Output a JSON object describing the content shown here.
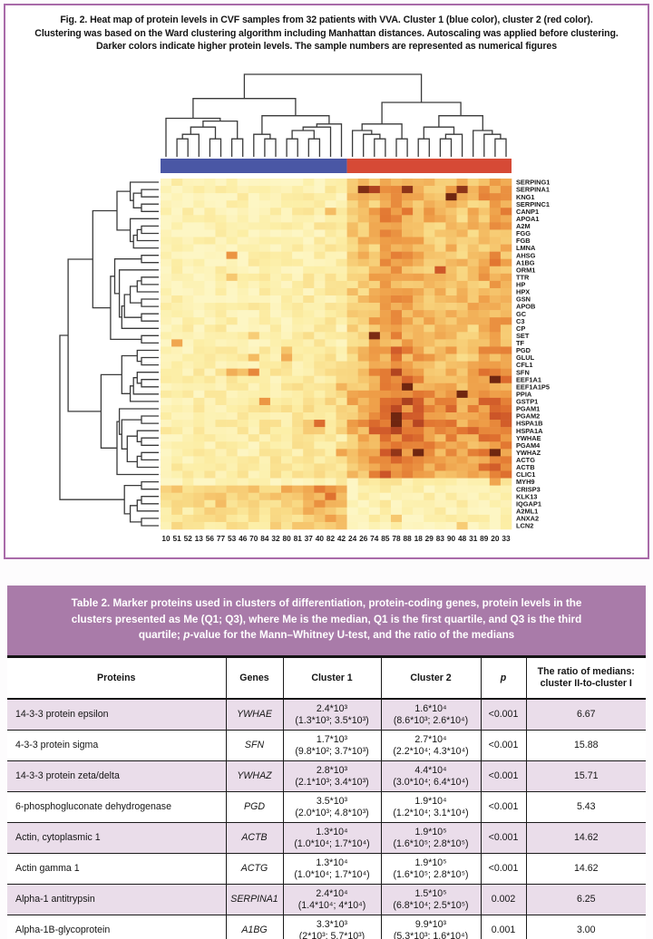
{
  "figure": {
    "caption_lines": [
      "Fig. 2. Heat map of protein levels in CVF samples from 32 patients with VVA. Cluster 1 (blue color), cluster 2 (red color).",
      "Clustering was based on the Ward clustering algorithm including Manhattan distances. Autoscaling was applied before clustering.",
      "Darker colors indicate higher protein levels. The sample numbers are represented as numerical figures"
    ],
    "border_color": "#a96ba9",
    "cluster1_color": "#4a57a5",
    "cluster2_color": "#d64a36"
  },
  "chart_data": {
    "type": "heatmap",
    "title": "Heat map of protein levels in CVF samples from 32 patients with VVA",
    "rows": [
      "SERPING1",
      "SERPINA1",
      "KNG1",
      "SERPINC1",
      "CANP1",
      "APOA1",
      "A2M",
      "FGG",
      "FGB",
      "LMNA",
      "AHSG",
      "A1BG",
      "ORM1",
      "TTR",
      "HP",
      "HPX",
      "GSN",
      "APOB",
      "GC",
      "C3",
      "CP",
      "SET",
      "TF",
      "PGD",
      "GLUL",
      "CFL1",
      "SFN",
      "EEF1A1",
      "EEF1A1P5",
      "PPIA",
      "GSTP1",
      "PGAM1",
      "PGAM2",
      "HSPA1B",
      "HSPA1A",
      "YWHAE",
      "PGAM4",
      "YWHAZ",
      "ACTG",
      "ACTB",
      "CLIC1",
      "MYH9",
      "CRISP3",
      "KLK13",
      "IQGAP1",
      "A2ML1",
      "ANXA2",
      "LCN2"
    ],
    "columns": [
      "10",
      "51",
      "52",
      "13",
      "56",
      "77",
      "53",
      "46",
      "70",
      "84",
      "32",
      "80",
      "81",
      "37",
      "40",
      "82",
      "42",
      "24",
      "26",
      "74",
      "85",
      "78",
      "88",
      "18",
      "29",
      "83",
      "90",
      "48",
      "31",
      "89",
      "20",
      "33"
    ],
    "cluster1_count": 17,
    "legend": {
      "cluster1": "blue",
      "cluster2": "red"
    },
    "palette_stops": [
      [
        0,
        "#FDF6C4"
      ],
      [
        0.18,
        "#FCEEA6"
      ],
      [
        0.35,
        "#F9DC88"
      ],
      [
        0.5,
        "#F5C168"
      ],
      [
        0.65,
        "#EE9D47"
      ],
      [
        0.78,
        "#E17430"
      ],
      [
        0.9,
        "#C84E26"
      ],
      [
        1,
        "#702610"
      ]
    ],
    "row_levels": [
      [
        0.1,
        0.5
      ],
      [
        0.1,
        0.52
      ],
      [
        0.12,
        0.55
      ],
      [
        0.1,
        0.45
      ],
      [
        0.14,
        0.55
      ],
      [
        0.12,
        0.5
      ],
      [
        0.12,
        0.52
      ],
      [
        0.1,
        0.48
      ],
      [
        0.1,
        0.5
      ],
      [
        0.12,
        0.45
      ],
      [
        0.12,
        0.5
      ],
      [
        0.12,
        0.52
      ],
      [
        0.12,
        0.48
      ],
      [
        0.14,
        0.5
      ],
      [
        0.12,
        0.46
      ],
      [
        0.12,
        0.48
      ],
      [
        0.14,
        0.5
      ],
      [
        0.16,
        0.52
      ],
      [
        0.14,
        0.5
      ],
      [
        0.15,
        0.52
      ],
      [
        0.14,
        0.48
      ],
      [
        0.15,
        0.5
      ],
      [
        0.14,
        0.46
      ],
      [
        0.18,
        0.55
      ],
      [
        0.18,
        0.52
      ],
      [
        0.2,
        0.55
      ],
      [
        0.2,
        0.6
      ],
      [
        0.2,
        0.58
      ],
      [
        0.2,
        0.58
      ],
      [
        0.22,
        0.62
      ],
      [
        0.22,
        0.68
      ],
      [
        0.22,
        0.66
      ],
      [
        0.22,
        0.66
      ],
      [
        0.24,
        0.7
      ],
      [
        0.24,
        0.7
      ],
      [
        0.2,
        0.62
      ],
      [
        0.2,
        0.62
      ],
      [
        0.2,
        0.64
      ],
      [
        0.22,
        0.64
      ],
      [
        0.22,
        0.62
      ],
      [
        0.24,
        0.6
      ],
      [
        0.08,
        0.14
      ],
      [
        0.52,
        0.1
      ],
      [
        0.5,
        0.1
      ],
      [
        0.45,
        0.1
      ],
      [
        0.4,
        0.08
      ],
      [
        0.38,
        0.08
      ],
      [
        0.35,
        0.08
      ]
    ],
    "col_factors": [
      0.5,
      0.7,
      0.6,
      0.65,
      0.8,
      0.85,
      0.8,
      0.75,
      0.8,
      0.9,
      0.85,
      0.9,
      1.0,
      1.3,
      1.25,
      1.35,
      1.2,
      0.8,
      0.9,
      1.05,
      1.25,
      1.3,
      1.2,
      1.1,
      1.0,
      0.95,
      1.05,
      0.9,
      1.0,
      1.1,
      1.2,
      1.15
    ]
  },
  "table": {
    "band_color": "#a97ba9",
    "caption_line1": "Table 2. Marker proteins used in clusters of differentiation,  protein-coding genes, protein levels in the",
    "caption_line2": "clusters presented as Me (Q1; Q3), where Me is the median, Q1 is the first quartile, and Q3 is the third",
    "caption_line3_pre": "quartile; ",
    "caption_line3_p": "p",
    "caption_line3_post": "-value for the  Mann–Whitney  U-test, and the ratio of the medians",
    "headers": {
      "proteins": "Proteins",
      "genes": "Genes",
      "cluster1": "Cluster 1",
      "cluster2": "Cluster 2",
      "p": "p",
      "ratio": "The ratio of medians: cluster II-to-cluster I"
    },
    "rows": [
      {
        "protein": "14-3-3 protein epsilon",
        "gene": "YWHAE",
        "c1_median": "2.4*10³",
        "c1_iqr": "(1.3*10³; 3.5*10³)",
        "c2_median": "1.6*10⁴",
        "c2_iqr": "(8.6*10³; 2.6*10⁴)",
        "p": "<0.001",
        "ratio": "6.67"
      },
      {
        "protein": "4-3-3 protein sigma",
        "gene": "SFN",
        "c1_median": "1.7*10³",
        "c1_iqr": "(9.8*10²; 3.7*10³)",
        "c2_median": "2.7*10⁴",
        "c2_iqr": "(2.2*10⁴; 4.3*10⁴)",
        "p": "<0.001",
        "ratio": "15.88"
      },
      {
        "protein": "14-3-3 protein zeta/delta",
        "gene": "YWHAZ",
        "c1_median": "2.8*10³",
        "c1_iqr": "(2.1*10³; 3.4*10³)",
        "c2_median": "4.4*10⁴",
        "c2_iqr": "(3.0*10⁴; 6.4*10⁴)",
        "p": "<0.001",
        "ratio": "15.71"
      },
      {
        "protein": "6-phosphogluconate dehydrogenase",
        "gene": "PGD",
        "c1_median": "3.5*10³",
        "c1_iqr": "(2.0*10³; 4.8*10³)",
        "c2_median": "1.9*10⁴",
        "c2_iqr": "(1.2*10⁴; 3.1*10⁴)",
        "p": "<0.001",
        "ratio": "5.43"
      },
      {
        "protein": "Actin, cytoplasmic 1",
        "gene": "ACTB",
        "c1_median": "1.3*10⁴",
        "c1_iqr": "(1.0*10⁴; 1.7*10⁴)",
        "c2_median": "1.9*10⁵",
        "c2_iqr": "(1.6*10⁵; 2.8*10⁵)",
        "p": "<0.001",
        "ratio": "14.62"
      },
      {
        "protein": "Actin gamma 1",
        "gene": "ACTG",
        "c1_median": "1.3*10⁴",
        "c1_iqr": "(1.0*10⁴; 1.7*10⁴)",
        "c2_median": "1.9*10⁵",
        "c2_iqr": "(1.6*10⁵; 2.8*10⁵)",
        "p": "<0.001",
        "ratio": "14.62"
      },
      {
        "protein": "Alpha-1 antitrypsin",
        "gene": "SERPINA1",
        "c1_median": "2.4*10⁴",
        "c1_iqr": "(1.4*10⁴; 4*10⁴)",
        "c2_median": "1.5*10⁵",
        "c2_iqr": "(6.8*10⁴; 2.5*10⁵)",
        "p": "0.002",
        "ratio": "6.25"
      },
      {
        "protein": "Alpha-1B-glycoprotein",
        "gene": "A1BG",
        "c1_median": "3.3*10³",
        "c1_iqr": "(2*10³; 5.7*10³)",
        "c2_median": "9.9*10³",
        "c2_iqr": "(5.3*10³; 1.6*10⁴)",
        "p": "0.001",
        "ratio": "3.00"
      }
    ]
  }
}
